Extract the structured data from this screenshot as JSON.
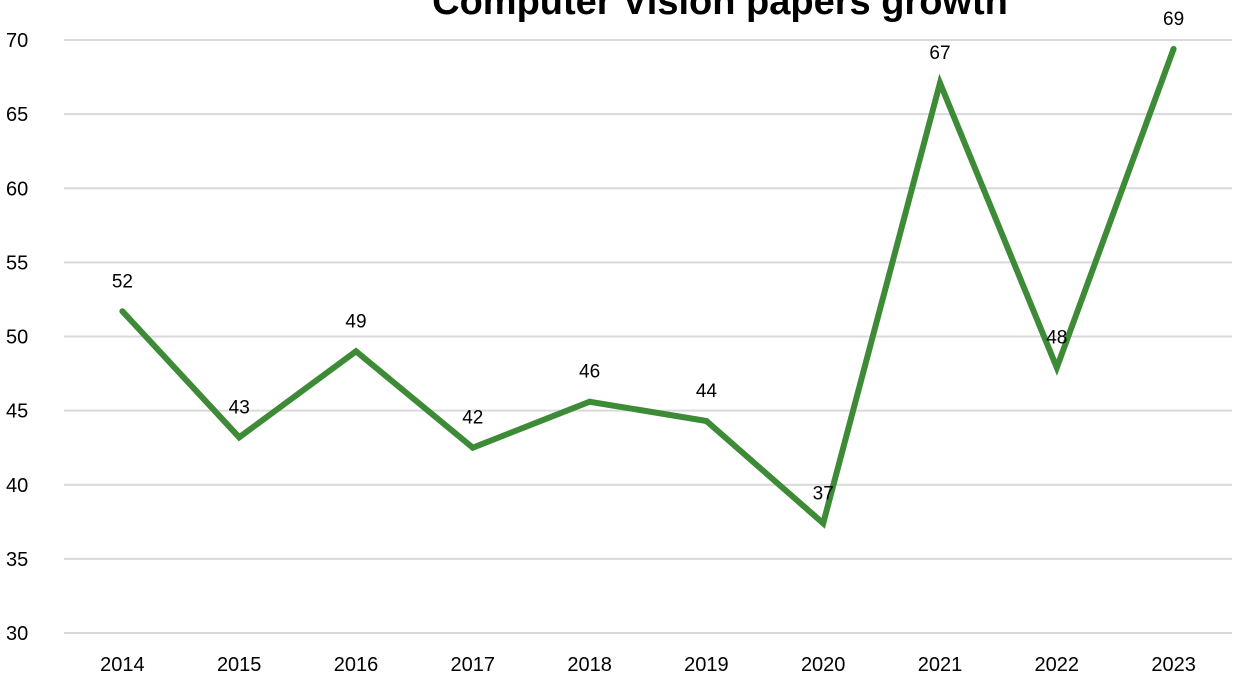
{
  "chart_data": {
    "type": "line",
    "title": "Computer Vision papers growth",
    "categories": [
      "2014",
      "2015",
      "2016",
      "2017",
      "2018",
      "2019",
      "2020",
      "2021",
      "2022",
      "2023"
    ],
    "series": [
      {
        "values": [
          51.7,
          43.2,
          49.0,
          42.5,
          45.6,
          44.3,
          37.4,
          67.1,
          47.9,
          69.4
        ],
        "labels": [
          "52",
          "43",
          "49",
          "42",
          "46",
          "44",
          "37",
          "67",
          "48",
          "69"
        ]
      }
    ],
    "ylim": [
      30,
      70
    ],
    "yticks": [
      30,
      35,
      40,
      45,
      50,
      55,
      60,
      65,
      70
    ],
    "grid": true,
    "legend": "none",
    "line_color": "#3d8b37"
  }
}
